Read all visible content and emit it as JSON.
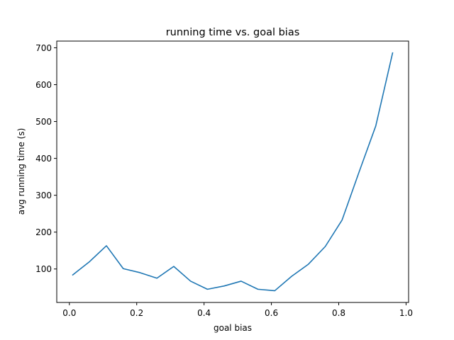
{
  "chart_data": {
    "type": "line",
    "title": "running time vs. goal bias",
    "xlabel": "goal bias",
    "ylabel": "avg running time (s)",
    "xlim": [
      -0.0375,
      1.0075
    ],
    "ylim": [
      9.2,
      718.2
    ],
    "xticks": [
      0.0,
      0.2,
      0.4,
      0.6,
      0.8,
      1.0
    ],
    "xtick_labels": [
      "0.0",
      "0.2",
      "0.4",
      "0.6",
      "0.8",
      "1.0"
    ],
    "yticks": [
      100,
      200,
      300,
      400,
      500,
      600,
      700
    ],
    "ytick_labels": [
      "100",
      "200",
      "300",
      "400",
      "500",
      "600",
      "700"
    ],
    "grid": false,
    "line_color": "#1f77b4",
    "series": [
      {
        "x": [
          0.01,
          0.06,
          0.11,
          0.16,
          0.21,
          0.26,
          0.31,
          0.36,
          0.41,
          0.46,
          0.51,
          0.56,
          0.61,
          0.66,
          0.71,
          0.76,
          0.81,
          0.86,
          0.91,
          0.96
        ],
        "y": [
          84,
          120,
          163,
          101,
          90,
          75,
          107,
          67,
          45,
          54,
          67,
          45,
          41,
          80,
          113,
          161,
          233,
          362,
          488,
          686
        ]
      }
    ]
  }
}
